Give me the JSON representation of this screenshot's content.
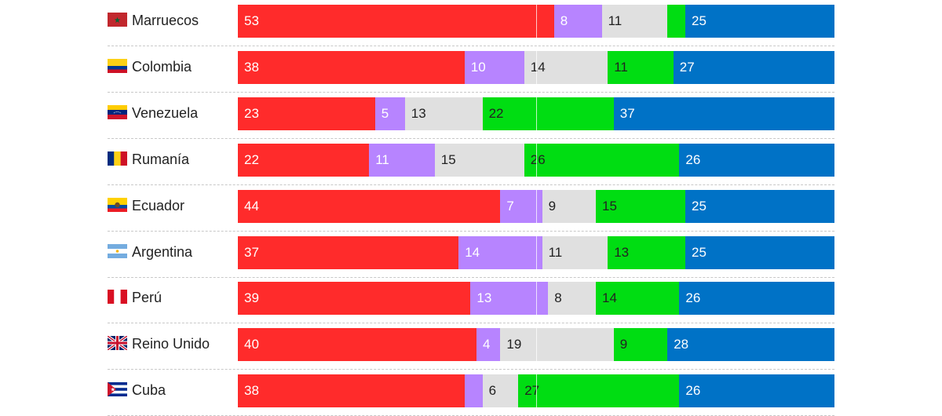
{
  "chart_data": {
    "type": "bar",
    "orientation": "horizontal",
    "stacked": true,
    "normalized_to": 100,
    "categories": [
      "Marruecos",
      "Colombia",
      "Venezuela",
      "Rumanía",
      "Ecuador",
      "Argentina",
      "Perú",
      "Reino Unido",
      "Cuba"
    ],
    "flags": [
      "flag-morocco-icon",
      "flag-colombia-icon",
      "flag-venezuela-icon",
      "flag-romania-icon",
      "flag-ecuador-icon",
      "flag-argentina-icon",
      "flag-peru-icon",
      "flag-uk-icon",
      "flag-cuba-icon"
    ],
    "series": [
      {
        "color": "#ff2b2b",
        "label_color": "#ffffff",
        "values": [
          53,
          38,
          23,
          22,
          44,
          37,
          39,
          40,
          38
        ]
      },
      {
        "color": "#b784ff",
        "label_color": "#ffffff",
        "values": [
          8,
          10,
          5,
          11,
          7,
          14,
          13,
          4,
          3
        ]
      },
      {
        "color": "#e0e0e0",
        "label_color": "#222222",
        "values": [
          11,
          14,
          13,
          15,
          9,
          11,
          8,
          19,
          6
        ]
      },
      {
        "color": "#00dd12",
        "label_color": "#222222",
        "values": [
          3,
          11,
          22,
          26,
          15,
          13,
          14,
          9,
          27
        ]
      },
      {
        "color": "#0072c6",
        "label_color": "#ffffff",
        "values": [
          25,
          27,
          37,
          26,
          25,
          25,
          26,
          28,
          26
        ]
      }
    ],
    "data_labels": [
      [
        "53",
        "8",
        "11",
        "",
        "25"
      ],
      [
        "38",
        "10",
        "14",
        "11",
        "27"
      ],
      [
        "23",
        "5",
        "13",
        "22",
        "37"
      ],
      [
        "22",
        "11",
        "15",
        "26",
        "26"
      ],
      [
        "44",
        "7",
        "9",
        "15",
        "25"
      ],
      [
        "37",
        "14",
        "11",
        "13",
        "25"
      ],
      [
        "39",
        "13",
        "8",
        "14",
        "26"
      ],
      [
        "40",
        "4",
        "19",
        "9",
        "28"
      ],
      [
        "38",
        "",
        "6",
        "27",
        "26"
      ]
    ],
    "reference_line_value": 50,
    "grid": false,
    "legend": "none"
  }
}
